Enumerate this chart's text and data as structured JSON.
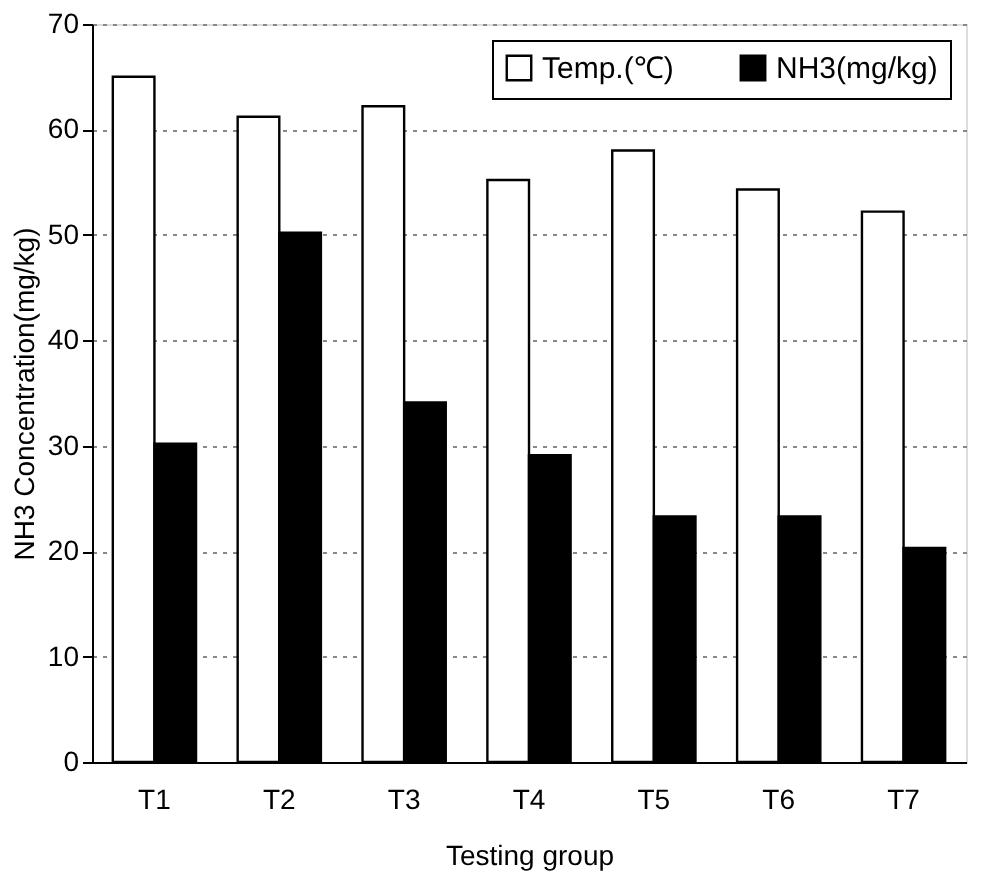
{
  "chart_data": {
    "type": "bar",
    "xlabel": "Testing group",
    "ylabel": "NH3 Concentration(mg/kg)",
    "categories": [
      "T1",
      "T2",
      "T3",
      "T4",
      "T5",
      "T6",
      "T7"
    ],
    "series": [
      {
        "name": "Temp.(℃)",
        "color": "#ffffff",
        "values": [
          65,
          61.2,
          62.2,
          55.2,
          58,
          54.3,
          52.2
        ]
      },
      {
        "name": "NH3(mg/kg)",
        "color": "#000000",
        "values": [
          30.2,
          50.2,
          34.1,
          29.1,
          23.3,
          23.3,
          20.3
        ]
      }
    ],
    "ylim": [
      0,
      70
    ],
    "yticks": [
      0,
      10,
      20,
      30,
      40,
      50,
      60,
      70
    ],
    "grid": "y",
    "legend": "top right"
  }
}
